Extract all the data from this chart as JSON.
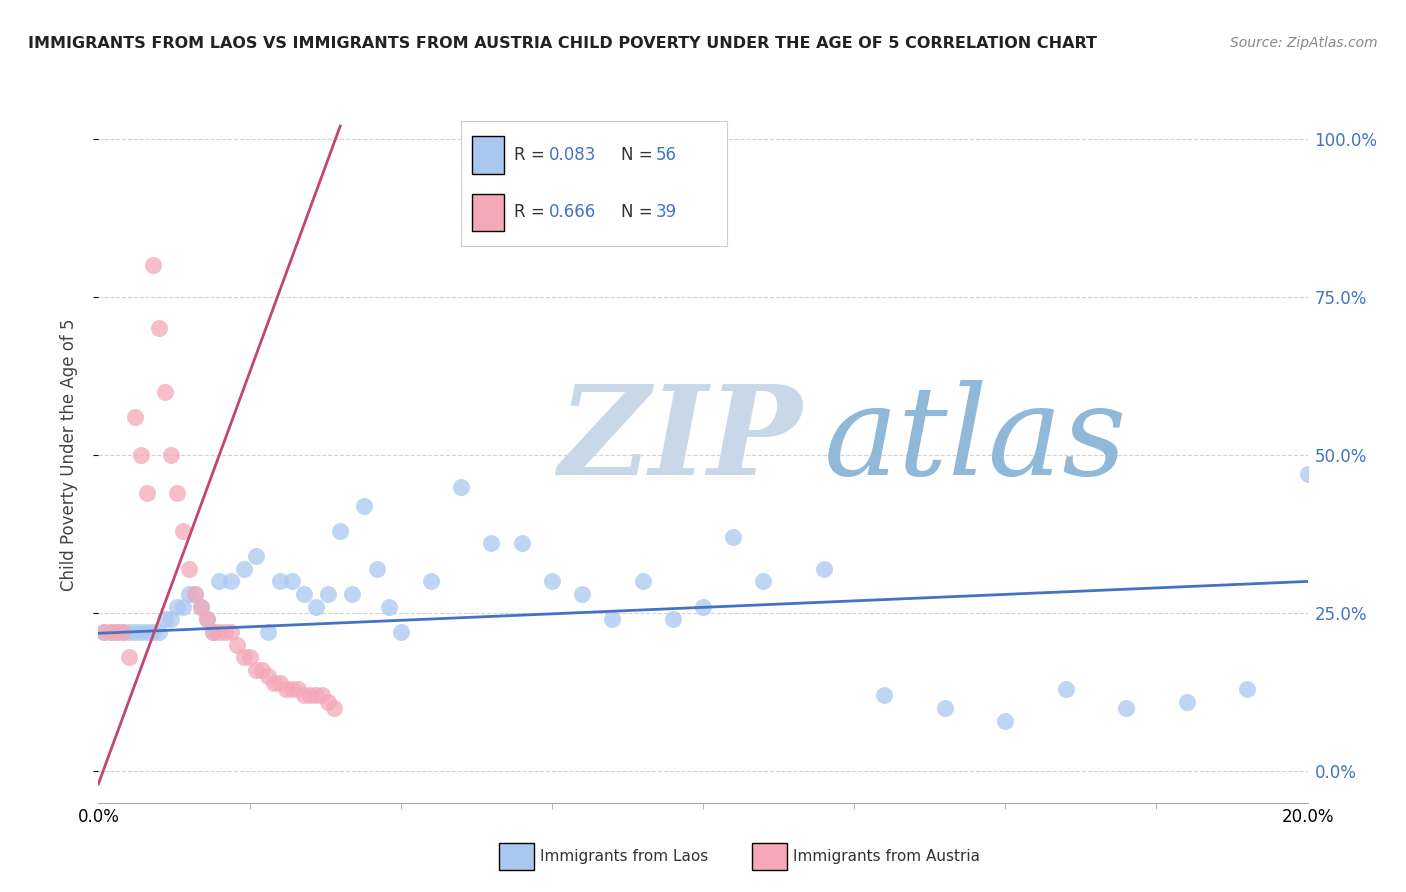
{
  "title": "IMMIGRANTS FROM LAOS VS IMMIGRANTS FROM AUSTRIA CHILD POVERTY UNDER THE AGE OF 5 CORRELATION CHART",
  "source": "Source: ZipAtlas.com",
  "ylabel": "Child Poverty Under the Age of 5",
  "xlim": [
    0.0,
    0.2
  ],
  "ylim": [
    -0.05,
    1.05
  ],
  "ytick_values": [
    0.0,
    0.25,
    0.5,
    0.75,
    1.0
  ],
  "ytick_right_labels": [
    "0.0%",
    "25.0%",
    "50.0%",
    "75.0%",
    "100.0%"
  ],
  "xtick_values": [
    0.0,
    0.2
  ],
  "xtick_labels": [
    "0.0%",
    "20.0%"
  ],
  "legend_laos_R": "0.083",
  "legend_laos_N": "56",
  "legend_austria_R": "0.666",
  "legend_austria_N": "39",
  "color_laos": "#a8c8f0",
  "color_austria": "#f4a8b8",
  "color_laos_line": "#4472c4",
  "color_austria_line": "#c44472",
  "watermark_zip": "ZIP",
  "watermark_atlas": "atlas",
  "watermark_color_zip": "#c8d8e8",
  "watermark_color_atlas": "#90b8d8",
  "background_color": "#ffffff",
  "grid_color": "#c8c8c8",
  "laos_x": [
    0.001,
    0.002,
    0.003,
    0.004,
    0.005,
    0.006,
    0.007,
    0.008,
    0.009,
    0.01,
    0.011,
    0.012,
    0.013,
    0.014,
    0.015,
    0.016,
    0.017,
    0.018,
    0.019,
    0.02,
    0.022,
    0.024,
    0.026,
    0.028,
    0.03,
    0.032,
    0.034,
    0.036,
    0.038,
    0.04,
    0.042,
    0.044,
    0.046,
    0.048,
    0.05,
    0.055,
    0.06,
    0.065,
    0.07,
    0.075,
    0.08,
    0.085,
    0.09,
    0.095,
    0.1,
    0.105,
    0.11,
    0.12,
    0.13,
    0.14,
    0.15,
    0.16,
    0.17,
    0.18,
    0.19,
    0.2
  ],
  "laos_y": [
    0.22,
    0.22,
    0.22,
    0.22,
    0.22,
    0.22,
    0.22,
    0.22,
    0.22,
    0.22,
    0.24,
    0.24,
    0.26,
    0.26,
    0.28,
    0.28,
    0.26,
    0.24,
    0.22,
    0.3,
    0.3,
    0.32,
    0.34,
    0.22,
    0.3,
    0.3,
    0.28,
    0.26,
    0.28,
    0.38,
    0.28,
    0.42,
    0.32,
    0.26,
    0.22,
    0.3,
    0.45,
    0.36,
    0.36,
    0.3,
    0.28,
    0.24,
    0.3,
    0.24,
    0.26,
    0.37,
    0.3,
    0.32,
    0.12,
    0.1,
    0.08,
    0.13,
    0.1,
    0.11,
    0.13,
    0.47
  ],
  "austria_x": [
    0.001,
    0.002,
    0.003,
    0.004,
    0.005,
    0.006,
    0.007,
    0.008,
    0.009,
    0.01,
    0.011,
    0.012,
    0.013,
    0.014,
    0.015,
    0.016,
    0.017,
    0.018,
    0.019,
    0.02,
    0.021,
    0.022,
    0.023,
    0.024,
    0.025,
    0.026,
    0.027,
    0.028,
    0.029,
    0.03,
    0.031,
    0.032,
    0.033,
    0.034,
    0.035,
    0.036,
    0.037,
    0.038,
    0.039
  ],
  "austria_y": [
    0.22,
    0.22,
    0.22,
    0.22,
    0.18,
    0.56,
    0.5,
    0.44,
    0.8,
    0.7,
    0.6,
    0.5,
    0.44,
    0.38,
    0.32,
    0.28,
    0.26,
    0.24,
    0.22,
    0.22,
    0.22,
    0.22,
    0.2,
    0.18,
    0.18,
    0.16,
    0.16,
    0.15,
    0.14,
    0.14,
    0.13,
    0.13,
    0.13,
    0.12,
    0.12,
    0.12,
    0.12,
    0.11,
    0.1
  ],
  "laos_line_x0": 0.0,
  "laos_line_x1": 0.2,
  "laos_line_y0": 0.218,
  "laos_line_y1": 0.3,
  "austria_line_x0": 0.0,
  "austria_line_x1": 0.04,
  "austria_line_y0": -0.02,
  "austria_line_y1": 1.02
}
